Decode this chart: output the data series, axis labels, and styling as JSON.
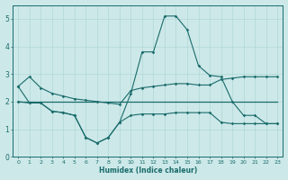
{
  "title": "",
  "xlabel": "Humidex (Indice chaleur)",
  "ylabel": "",
  "xlim": [
    -0.5,
    23.5
  ],
  "ylim": [
    0,
    5.5
  ],
  "yticks": [
    0,
    1,
    2,
    3,
    4,
    5
  ],
  "xticks": [
    0,
    1,
    2,
    3,
    4,
    5,
    6,
    7,
    8,
    9,
    10,
    11,
    12,
    13,
    14,
    15,
    16,
    17,
    18,
    19,
    20,
    21,
    22,
    23
  ],
  "bg_color": "#cce8e8",
  "line_color": "#1a6b6b",
  "grid_color": "#aad4d4",
  "line1_x": [
    0,
    1,
    2,
    3,
    4,
    5,
    6,
    7,
    8,
    9,
    10,
    11,
    12,
    13,
    14,
    15,
    16,
    17,
    18,
    19,
    20,
    21,
    22,
    23
  ],
  "line1_y": [
    2.55,
    1.95,
    1.95,
    1.65,
    1.6,
    1.5,
    0.7,
    0.5,
    0.7,
    1.25,
    2.3,
    3.8,
    3.8,
    5.1,
    5.1,
    4.6,
    3.3,
    2.95,
    2.9,
    2.0,
    1.5,
    1.5,
    1.2,
    1.2
  ],
  "line2_x": [
    0,
    1,
    2,
    3,
    4,
    5,
    6,
    7,
    8,
    9,
    10,
    11,
    12,
    13,
    14,
    15,
    16,
    17,
    18,
    19,
    20,
    21,
    22,
    23
  ],
  "line2_y": [
    2.55,
    2.9,
    2.5,
    2.3,
    2.2,
    2.1,
    2.05,
    2.0,
    1.95,
    1.9,
    2.4,
    2.5,
    2.55,
    2.6,
    2.65,
    2.65,
    2.6,
    2.6,
    2.8,
    2.85,
    2.9,
    2.9,
    2.9,
    2.9
  ],
  "line3_x": [
    0,
    23
  ],
  "line3_y": [
    2.0,
    2.0
  ],
  "line4_x": [
    0,
    1,
    2,
    3,
    4,
    5,
    6,
    7,
    8,
    9,
    10,
    11,
    12,
    13,
    14,
    15,
    16,
    17,
    18,
    19,
    20,
    21,
    22,
    23
  ],
  "line4_y": [
    2.0,
    1.95,
    1.95,
    1.65,
    1.6,
    1.5,
    0.7,
    0.5,
    0.7,
    1.25,
    1.5,
    1.55,
    1.55,
    1.55,
    1.6,
    1.6,
    1.6,
    1.6,
    1.25,
    1.2,
    1.2,
    1.2,
    1.2,
    1.2
  ]
}
